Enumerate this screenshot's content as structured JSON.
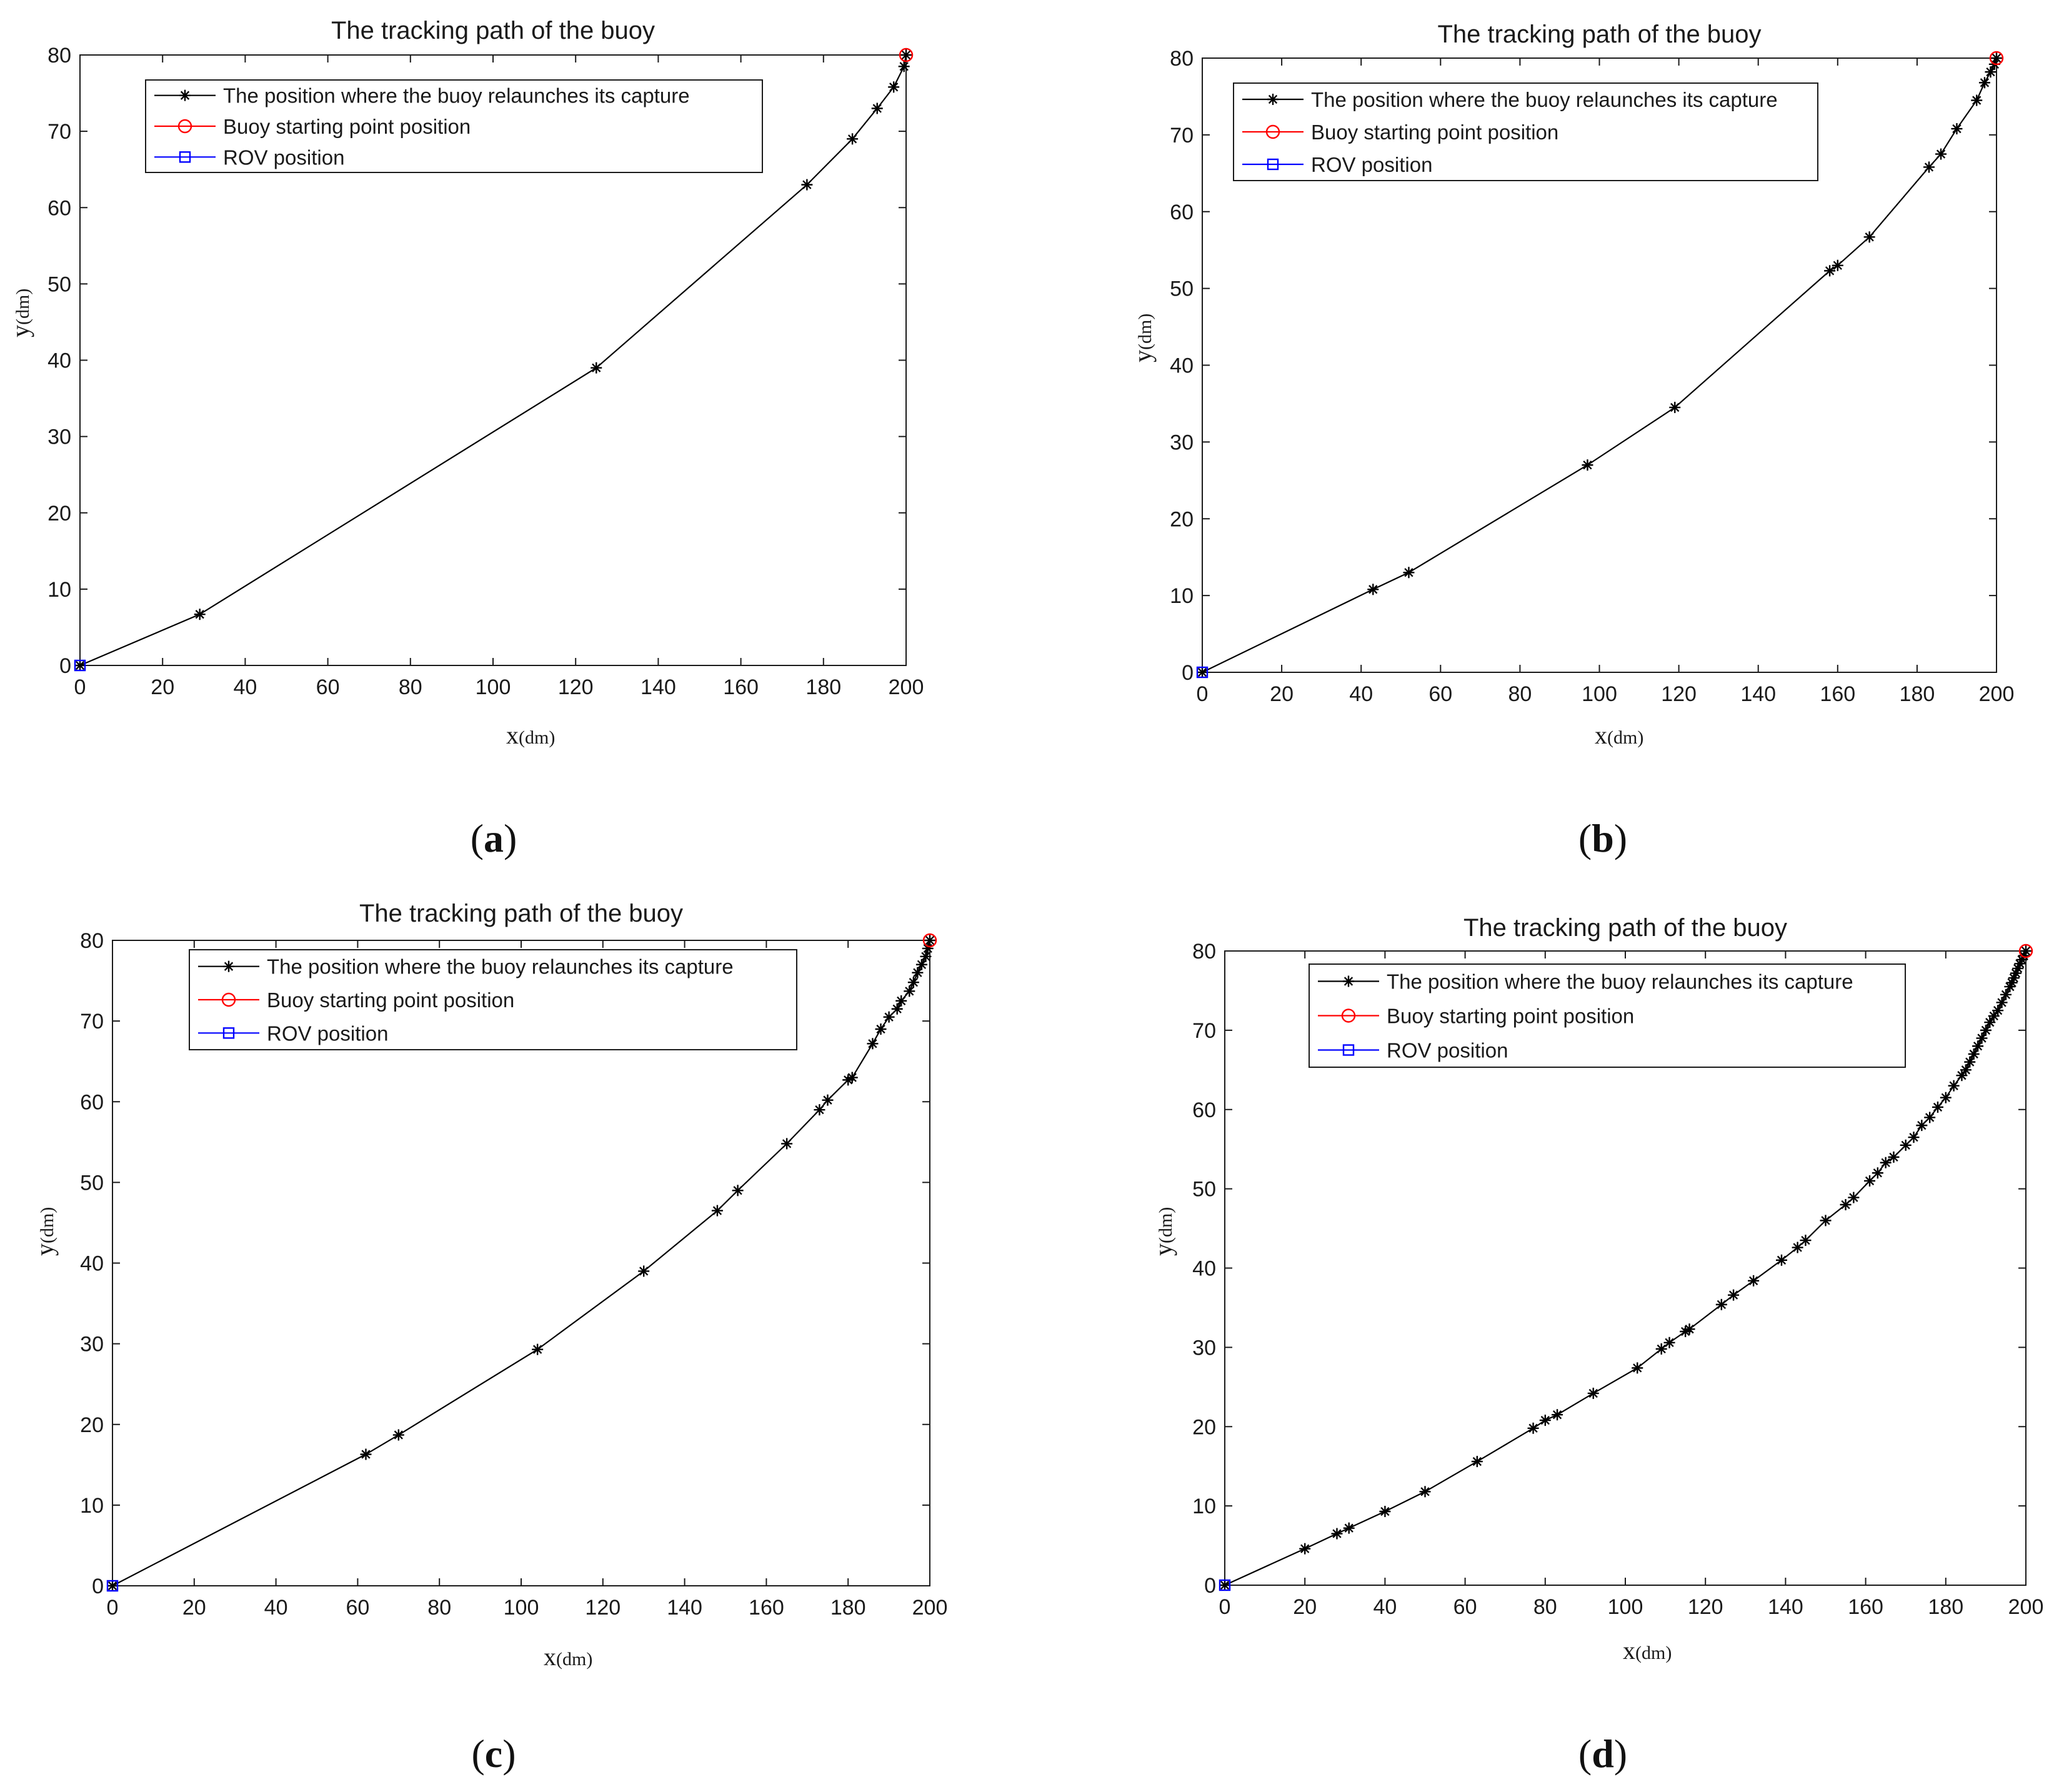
{
  "chart_data": [
    {
      "id": "a",
      "type": "line",
      "caption": "a",
      "title": "The tracking path of the buoy",
      "xlabel": "x",
      "xlabel_unit": "(dm)",
      "ylabel": "y",
      "ylabel_unit": "(dm)",
      "xlim": [
        0,
        200
      ],
      "ylim": [
        0,
        80
      ],
      "xticks": [
        0,
        20,
        40,
        60,
        80,
        100,
        120,
        140,
        160,
        180,
        200
      ],
      "yticks": [
        0,
        10,
        20,
        30,
        40,
        50,
        60,
        70,
        80
      ],
      "legend": [
        "The position where the buoy relaunches its capture",
        "Buoy starting point position",
        "ROV position"
      ],
      "series": [
        {
          "name": "The position where the buoy relaunches its capture",
          "color": "#000000",
          "marker": "star",
          "x": [
            0,
            29,
            125,
            176,
            187,
            193,
            197,
            199.5,
            200
          ],
          "y": [
            0,
            6.7,
            39,
            63,
            69,
            73,
            75.8,
            78.5,
            80
          ]
        },
        {
          "name": "Buoy starting point position",
          "color": "#ff0000",
          "marker": "circle",
          "x": [
            200
          ],
          "y": [
            80
          ]
        },
        {
          "name": "ROV position",
          "color": "#0000ff",
          "marker": "square",
          "x": [
            0
          ],
          "y": [
            0
          ]
        }
      ]
    },
    {
      "id": "b",
      "type": "line",
      "caption": "b",
      "title": "The tracking path of the buoy",
      "xlabel": "x",
      "xlabel_unit": "(dm)",
      "ylabel": "y",
      "ylabel_unit": "(dm)",
      "xlim": [
        0,
        200
      ],
      "ylim": [
        0,
        80
      ],
      "xticks": [
        0,
        20,
        40,
        60,
        80,
        100,
        120,
        140,
        160,
        180,
        200
      ],
      "yticks": [
        0,
        10,
        20,
        30,
        40,
        50,
        60,
        70,
        80
      ],
      "legend": [
        "The position where the buoy relaunches its capture",
        "Buoy starting point position",
        "ROV position"
      ],
      "series": [
        {
          "name": "The position where the buoy relaunches its capture",
          "color": "#000000",
          "marker": "star",
          "x": [
            0,
            43,
            52,
            97,
            119,
            158,
            160,
            168,
            183,
            186,
            190,
            195,
            197,
            198.5,
            199.5,
            200
          ],
          "y": [
            0,
            10.8,
            13,
            27,
            34.5,
            52.3,
            53,
            56.7,
            65.8,
            67.5,
            70.8,
            74.5,
            76.8,
            78.2,
            79.2,
            80
          ]
        },
        {
          "name": "Buoy starting point position",
          "color": "#ff0000",
          "marker": "circle",
          "x": [
            200
          ],
          "y": [
            80
          ]
        },
        {
          "name": "ROV position",
          "color": "#0000ff",
          "marker": "square",
          "x": [
            0
          ],
          "y": [
            0
          ]
        }
      ]
    },
    {
      "id": "c",
      "type": "line",
      "caption": "c",
      "title": "The tracking path of the buoy",
      "xlabel": "x",
      "xlabel_unit": "(dm)",
      "ylabel": "y",
      "ylabel_unit": "(dm)",
      "xlim": [
        0,
        200
      ],
      "ylim": [
        0,
        80
      ],
      "xticks": [
        0,
        20,
        40,
        60,
        80,
        100,
        120,
        140,
        160,
        180,
        200
      ],
      "yticks": [
        0,
        10,
        20,
        30,
        40,
        50,
        60,
        70,
        80
      ],
      "legend": [
        "The position where the buoy relaunches its capture",
        "Buoy starting point position",
        "ROV position"
      ],
      "series": [
        {
          "name": "The position where the buoy relaunches its capture",
          "color": "#000000",
          "marker": "star",
          "x": [
            0,
            62,
            70,
            104,
            130,
            148,
            153,
            165,
            173,
            175,
            180,
            181,
            186,
            188,
            190,
            192,
            193,
            195,
            196,
            197,
            198,
            199,
            199.5,
            200
          ],
          "y": [
            0,
            16.3,
            18.7,
            29.3,
            39,
            46.5,
            49,
            54.8,
            59,
            60.2,
            62.7,
            63,
            67.2,
            69,
            70.5,
            71.5,
            72.5,
            73.7,
            74.8,
            76,
            77,
            78,
            79,
            80
          ]
        },
        {
          "name": "Buoy starting point position",
          "color": "#ff0000",
          "marker": "circle",
          "x": [
            200
          ],
          "y": [
            80
          ]
        },
        {
          "name": "ROV position",
          "color": "#0000ff",
          "marker": "square",
          "x": [
            0
          ],
          "y": [
            0
          ]
        }
      ]
    },
    {
      "id": "d",
      "type": "line",
      "caption": "d",
      "title": "The tracking path of the buoy",
      "xlabel": "x",
      "xlabel_unit": "(dm)",
      "ylabel": "y",
      "ylabel_unit": "(dm)",
      "xlim": [
        0,
        200
      ],
      "ylim": [
        0,
        80
      ],
      "xticks": [
        0,
        20,
        40,
        60,
        80,
        100,
        120,
        140,
        160,
        180,
        200
      ],
      "yticks": [
        0,
        10,
        20,
        30,
        40,
        50,
        60,
        70,
        80
      ],
      "legend": [
        "The position where the buoy relaunches its capture",
        "Buoy starting point position",
        "ROV position"
      ],
      "series": [
        {
          "name": "The position where the buoy relaunches its capture",
          "color": "#000000",
          "marker": "star",
          "x": [
            0,
            20,
            28,
            31,
            40,
            50,
            63,
            77,
            80,
            83,
            92,
            103,
            109,
            111,
            115,
            116,
            124,
            127,
            132,
            139,
            143,
            145,
            150,
            155,
            157,
            161,
            163,
            165,
            167,
            170,
            172,
            174,
            176,
            178,
            180,
            182,
            184,
            185,
            186,
            187,
            188,
            189,
            190,
            191,
            192,
            193,
            194,
            195,
            196,
            196.5,
            197,
            197.5,
            198,
            198.5,
            199,
            199.5,
            200
          ],
          "y": [
            0,
            4.6,
            6.5,
            7.2,
            9.3,
            11.8,
            15.6,
            19.8,
            20.8,
            21.5,
            24.2,
            27.4,
            29.8,
            30.6,
            32,
            32.3,
            35.4,
            36.6,
            38.4,
            41,
            42.6,
            43.5,
            46,
            48,
            48.9,
            51,
            52,
            53.3,
            54,
            55.5,
            56.5,
            58,
            59,
            60.3,
            61.5,
            63,
            64.3,
            65,
            66,
            67,
            68,
            69,
            70,
            71,
            71.8,
            72.5,
            73.5,
            74.5,
            75.5,
            76,
            76.6,
            77.2,
            77.8,
            78.4,
            78.9,
            79.4,
            80
          ]
        },
        {
          "name": "Buoy starting point position",
          "color": "#ff0000",
          "marker": "circle",
          "x": [
            200
          ],
          "y": [
            80
          ]
        },
        {
          "name": "ROV position",
          "color": "#0000ff",
          "marker": "square",
          "x": [
            0
          ],
          "y": [
            0
          ]
        }
      ]
    }
  ]
}
